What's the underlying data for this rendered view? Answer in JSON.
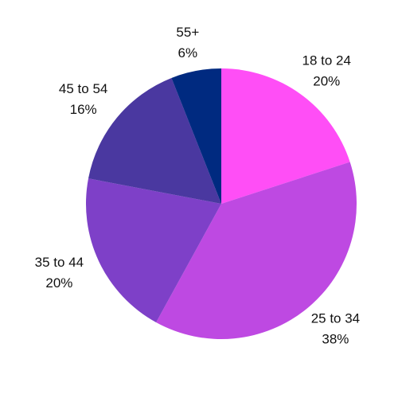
{
  "chart_data": {
    "type": "pie",
    "categories": [
      "18 to 24",
      "25 to 34",
      "35 to 44",
      "45 to 54",
      "55+"
    ],
    "values": [
      20,
      38,
      20,
      16,
      6
    ],
    "value_labels": [
      "20%",
      "38%",
      "20%",
      "16%",
      "6%"
    ],
    "colors": [
      "#ff4ef6",
      "#be49e2",
      "#7e40c8",
      "#4a38a0",
      "#002a80"
    ]
  }
}
